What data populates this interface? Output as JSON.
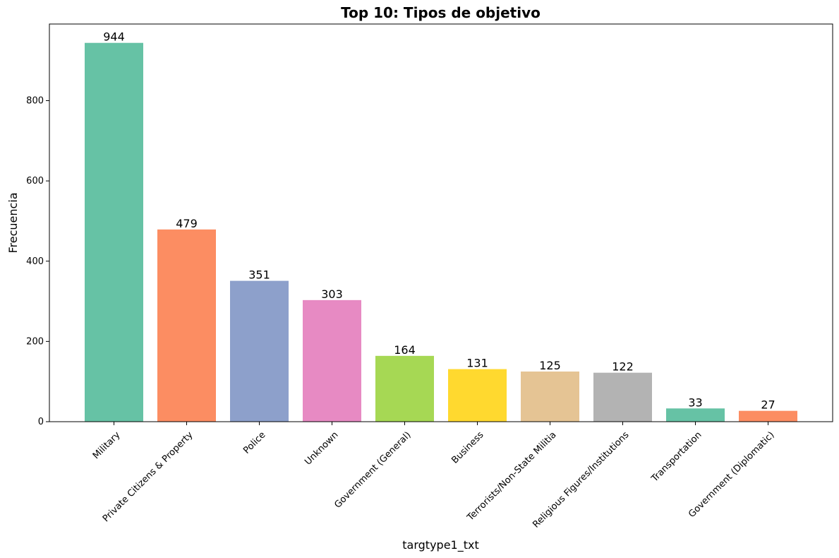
{
  "chart_data": {
    "type": "bar",
    "title": "Top 10: Tipos de objetivo",
    "xlabel": "targtype1_txt",
    "ylabel": "Frecuencia",
    "categories": [
      "Military",
      "Private Citizens & Property",
      "Police",
      "Unknown",
      "Government (General)",
      "Business",
      "Terrorists/Non-State Militia",
      "Religious Figures/Institutions",
      "Transportation",
      "Government (Diplomatic)"
    ],
    "values": [
      944,
      479,
      351,
      303,
      164,
      131,
      125,
      122,
      33,
      27
    ],
    "data_labels": [
      "944",
      "479",
      "351",
      "303",
      "164",
      "131",
      "125",
      "122",
      "33",
      "27"
    ],
    "colors": [
      "#66c2a5",
      "#fc8d62",
      "#8da0cb",
      "#e78ac3",
      "#a6d854",
      "#ffd92f",
      "#e5c494",
      "#b3b3b3",
      "#66c2a5",
      "#fc8d62"
    ],
    "ylim": [
      0,
      991
    ],
    "yticks": [
      0,
      200,
      400,
      600,
      800
    ],
    "ytick_labels": [
      "0",
      "200",
      "400",
      "600",
      "800"
    ],
    "grid": false,
    "legend": false
  }
}
